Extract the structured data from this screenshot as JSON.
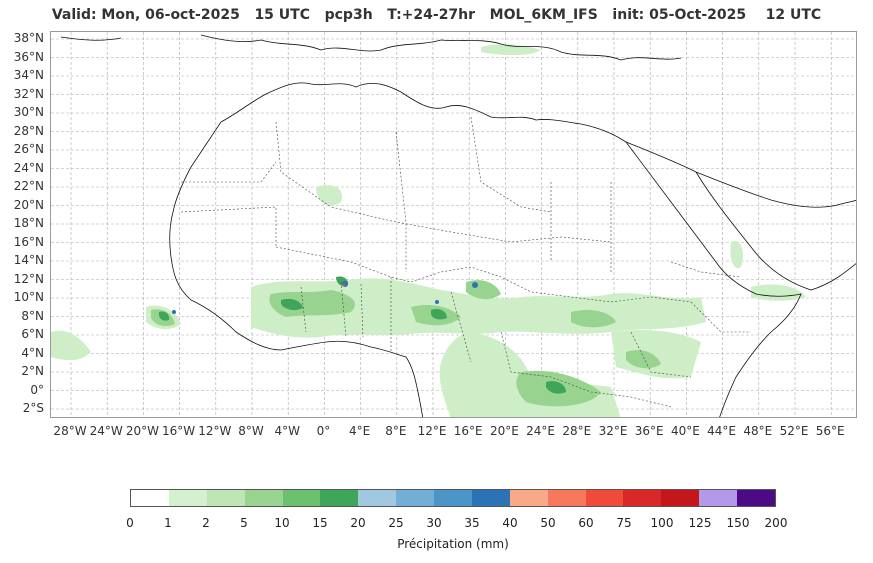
{
  "title": "Valid: Mon, 06-oct-2025   15 UTC   pcp3h   T:+24-27hr   MOL_6KM_IFS   init: 05-Oct-2025    12 UTC",
  "lat_labels": [
    "38°N",
    "36°N",
    "34°N",
    "32°N",
    "30°N",
    "28°N",
    "26°N",
    "24°N",
    "22°N",
    "20°N",
    "18°N",
    "16°N",
    "14°N",
    "12°N",
    "10°N",
    "8°N",
    "6°N",
    "4°N",
    "2°N",
    "0°",
    "2°S"
  ],
  "lon_labels": [
    "28°W",
    "24°W",
    "20°W",
    "16°W",
    "12°W",
    "8°W",
    "4°W",
    "0°",
    "4°E",
    "8°E",
    "12°E",
    "16°E",
    "20°E",
    "24°E",
    "28°E",
    "32°E",
    "36°E",
    "40°E",
    "44°E",
    "48°E",
    "52°E",
    "56°E"
  ],
  "colorbar": {
    "label": "Précipitation (mm)",
    "ticks": [
      "0",
      "1",
      "2",
      "5",
      "10",
      "15",
      "20",
      "25",
      "30",
      "35",
      "40",
      "50",
      "60",
      "75",
      "100",
      "125",
      "150",
      "200"
    ],
    "colors": [
      "#ffffff",
      "#d3f0cf",
      "#bde5b6",
      "#98d48f",
      "#6cc06e",
      "#3ea55a",
      "#a0c8e0",
      "#72aed6",
      "#4a94c8",
      "#2b73b4",
      "#f9a88a",
      "#f7785a",
      "#ef4a3a",
      "#d9282a",
      "#c3171b",
      "#b39ae8",
      "#4d0a85"
    ]
  },
  "map": {
    "land_color": "#ffffff",
    "grid_color": "#aaaaaa",
    "coast_color": "#111111",
    "border_color": "#333333"
  }
}
